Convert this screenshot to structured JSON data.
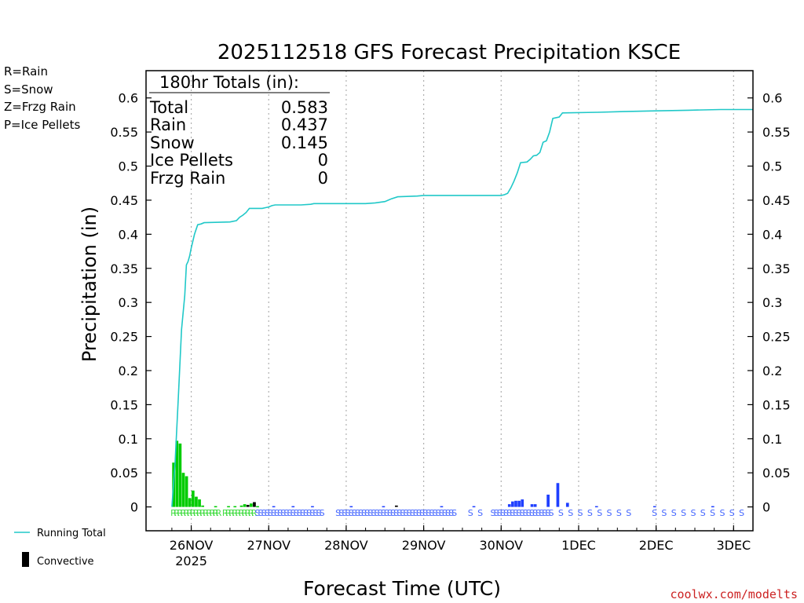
{
  "chart_data": {
    "type": "bar+line",
    "title": "2025112518 GFS Forecast Precipitation KSCE",
    "ylabel": "Precipitation (in)",
    "xlabel": "Forecast Time (UTC)",
    "ylim": [
      -0.035,
      0.64
    ],
    "y_ticks": [
      0,
      0.05,
      0.1,
      0.15,
      0.2,
      0.25,
      0.3,
      0.35,
      0.4,
      0.45,
      0.5,
      0.55,
      0.6
    ],
    "y_tick_labels": [
      "0",
      "0.05",
      "0.1",
      "0.15",
      "0.2",
      "0.25",
      "0.3",
      "0.35",
      "0.4",
      "0.45",
      "0.5",
      "0.55",
      "0.6"
    ],
    "x_range_hours": [
      -8,
      180
    ],
    "x_ticks": [
      {
        "hour": 6,
        "label": "26NOV",
        "sublabel": "2025"
      },
      {
        "hour": 30,
        "label": "27NOV"
      },
      {
        "hour": 54,
        "label": "28NOV"
      },
      {
        "hour": 78,
        "label": "29NOV"
      },
      {
        "hour": 102,
        "label": "30NOV"
      },
      {
        "hour": 126,
        "label": "1DEC"
      },
      {
        "hour": 150,
        "label": "2DEC"
      },
      {
        "hour": 174,
        "label": "3DEC"
      }
    ],
    "type_legend": [
      {
        "text": "R=Rain",
        "color": "#00cc00"
      },
      {
        "text": "S=Snow",
        "color": "#3355ff"
      },
      {
        "text": "Z=Frzg Rain",
        "color": "#ff8c2a"
      },
      {
        "text": "P=Ice Pellets",
        "color": "#ff1493"
      }
    ],
    "bottom_legend": {
      "running_total": "Running Total",
      "convective": "Convective"
    },
    "totals": {
      "heading": "180hr Totals (in):",
      "rows": [
        {
          "label": "Total",
          "value": "0.583"
        },
        {
          "label": "Rain",
          "value": "0.437"
        },
        {
          "label": "Snow",
          "value": "0.145"
        },
        {
          "label": "Ice Pellets",
          "value": "0"
        },
        {
          "label": "Frzg Rain",
          "value": "0"
        }
      ]
    },
    "colors": {
      "rain": "#00cc00",
      "snow": "#1f3fff",
      "convective": "#000000",
      "running_total": "#20c8c8",
      "ptype_rain": "#44dd44",
      "ptype_snow": "#4466ff",
      "grid": "#b0b0b0"
    },
    "bars": [
      {
        "hour": 1,
        "value": 0.065,
        "type": "rain"
      },
      {
        "hour": 2,
        "value": 0.097,
        "type": "rain"
      },
      {
        "hour": 3,
        "value": 0.093,
        "type": "rain"
      },
      {
        "hour": 4,
        "value": 0.05,
        "type": "rain"
      },
      {
        "hour": 5,
        "value": 0.045,
        "type": "rain"
      },
      {
        "hour": 6,
        "value": 0.013,
        "type": "rain"
      },
      {
        "hour": 7,
        "value": 0.024,
        "type": "rain"
      },
      {
        "hour": 8,
        "value": 0.015,
        "type": "rain"
      },
      {
        "hour": 9,
        "value": 0.011,
        "type": "rain"
      },
      {
        "hour": 10,
        "value": 0.002,
        "type": "rain"
      },
      {
        "hour": 14,
        "value": 0.001,
        "type": "rain"
      },
      {
        "hour": 18,
        "value": 0.001,
        "type": "rain"
      },
      {
        "hour": 20,
        "value": 0.001,
        "type": "rain"
      },
      {
        "hour": 22,
        "value": 0.002,
        "type": "rain"
      },
      {
        "hour": 23,
        "value": 0.004,
        "type": "rain"
      },
      {
        "hour": 24,
        "value": 0.003,
        "type": "convective"
      },
      {
        "hour": 25,
        "value": 0.005,
        "type": "rain"
      },
      {
        "hour": 26,
        "value": 0.007,
        "type": "convective"
      },
      {
        "hour": 27,
        "value": 0.001,
        "type": "rain"
      },
      {
        "hour": 32,
        "value": 0.001,
        "type": "snow"
      },
      {
        "hour": 38,
        "value": 0.001,
        "type": "snow"
      },
      {
        "hour": 44,
        "value": 0.001,
        "type": "snow"
      },
      {
        "hour": 56,
        "value": 0.001,
        "type": "snow"
      },
      {
        "hour": 66,
        "value": 0.001,
        "type": "snow"
      },
      {
        "hour": 70,
        "value": 0.002,
        "type": "convective"
      },
      {
        "hour": 84,
        "value": 0.001,
        "type": "snow"
      },
      {
        "hour": 94,
        "value": 0.001,
        "type": "snow"
      },
      {
        "hour": 105,
        "value": 0.004,
        "type": "snow"
      },
      {
        "hour": 106,
        "value": 0.008,
        "type": "snow"
      },
      {
        "hour": 107,
        "value": 0.009,
        "type": "snow"
      },
      {
        "hour": 108,
        "value": 0.009,
        "type": "snow"
      },
      {
        "hour": 109,
        "value": 0.011,
        "type": "snow"
      },
      {
        "hour": 112,
        "value": 0.004,
        "type": "snow"
      },
      {
        "hour": 113,
        "value": 0.004,
        "type": "snow"
      },
      {
        "hour": 117,
        "value": 0.018,
        "type": "snow"
      },
      {
        "hour": 120,
        "value": 0.035,
        "type": "snow"
      },
      {
        "hour": 123,
        "value": 0.006,
        "type": "snow"
      },
      {
        "hour": 132,
        "value": 0.001,
        "type": "snow"
      },
      {
        "hour": 150,
        "value": 0.001,
        "type": "snow"
      },
      {
        "hour": 168,
        "value": 0.001,
        "type": "snow"
      }
    ],
    "running_total": [
      [
        0,
        0.0
      ],
      [
        1,
        0.065
      ],
      [
        2,
        0.16
      ],
      [
        3,
        0.26
      ],
      [
        4,
        0.31
      ],
      [
        4.5,
        0.355
      ],
      [
        5,
        0.36
      ],
      [
        5.5,
        0.368
      ],
      [
        6,
        0.38
      ],
      [
        7,
        0.4
      ],
      [
        8,
        0.414
      ],
      [
        9,
        0.415
      ],
      [
        10,
        0.417
      ],
      [
        18,
        0.418
      ],
      [
        20,
        0.42
      ],
      [
        21,
        0.425
      ],
      [
        22,
        0.428
      ],
      [
        23,
        0.432
      ],
      [
        24,
        0.438
      ],
      [
        28,
        0.438
      ],
      [
        29,
        0.439
      ],
      [
        30,
        0.44
      ],
      [
        31,
        0.442
      ],
      [
        32,
        0.443
      ],
      [
        40,
        0.443
      ],
      [
        43,
        0.444
      ],
      [
        44,
        0.445
      ],
      [
        60,
        0.445
      ],
      [
        63,
        0.446
      ],
      [
        66,
        0.448
      ],
      [
        68,
        0.452
      ],
      [
        70,
        0.455
      ],
      [
        76,
        0.456
      ],
      [
        78,
        0.457
      ],
      [
        102,
        0.457
      ],
      [
        103,
        0.458
      ],
      [
        104,
        0.46
      ],
      [
        105,
        0.468
      ],
      [
        106,
        0.478
      ],
      [
        107,
        0.49
      ],
      [
        108,
        0.505
      ],
      [
        110,
        0.506
      ],
      [
        111,
        0.51
      ],
      [
        112,
        0.515
      ],
      [
        113,
        0.516
      ],
      [
        114,
        0.52
      ],
      [
        115,
        0.535
      ],
      [
        116,
        0.537
      ],
      [
        117,
        0.55
      ],
      [
        118,
        0.57
      ],
      [
        120,
        0.572
      ],
      [
        121,
        0.578
      ],
      [
        132,
        0.579
      ],
      [
        140,
        0.58
      ],
      [
        150,
        0.581
      ],
      [
        160,
        0.582
      ],
      [
        170,
        0.583
      ],
      [
        180,
        0.583
      ]
    ],
    "ptype_markers": [
      {
        "text": "RRRRRRRRRRRRRR",
        "start_hour": 1,
        "type": "rain"
      },
      {
        "text": "RR",
        "start_hour": 14,
        "type": "rain"
      },
      {
        "text": "RRRRRRRRR",
        "start_hour": 17,
        "type": "rain"
      },
      {
        "text": "R",
        "start_hour": 26,
        "type": "rain"
      },
      {
        "text": "SSSSSSS",
        "start_hour": 27,
        "type": "snow"
      },
      {
        "text": "SSSSSSSSSSSSSS",
        "start_hour": 34,
        "type": "snow"
      },
      {
        "text": "SSSSSSSSSSSSSSSSSSSSSSSSSSSSSSSSSSSSS",
        "start_hour": 52,
        "type": "snow"
      },
      {
        "text": "S",
        "start_hour": 93,
        "type": "snow"
      },
      {
        "text": "S",
        "start_hour": 96,
        "type": "snow"
      },
      {
        "text": "SSSSSSSSSSSSSSSSSSS",
        "start_hour": 100,
        "type": "snow"
      },
      {
        "text": "SSSSSSSS",
        "start_hour": 121,
        "type": "snow"
      },
      {
        "text": "SSSSSSSSSS",
        "start_hour": 150,
        "type": "snow"
      }
    ],
    "credit": "coolwx.com/modelts"
  }
}
